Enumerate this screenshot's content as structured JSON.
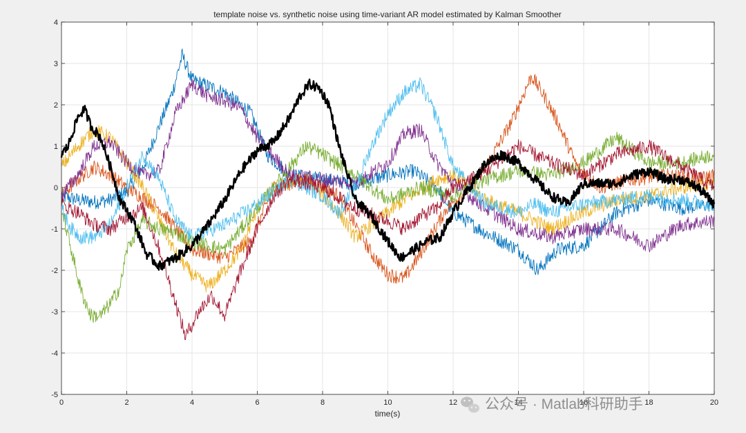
{
  "chart_data": {
    "type": "line",
    "title": "template noise vs. synthetic noise using time-variant AR model estimated by Kalman Smoother",
    "xlabel": "time(s)",
    "ylabel": "",
    "xlim": [
      0,
      20
    ],
    "ylim": [
      -5,
      4
    ],
    "xticks": [
      "0",
      "2",
      "4",
      "6",
      "8",
      "10",
      "12",
      "14",
      "16",
      "18",
      "20"
    ],
    "yticks": [
      "-5",
      "-4",
      "-3",
      "-2",
      "-1",
      "0",
      "1",
      "2",
      "3",
      "4"
    ],
    "grid": true,
    "legend": "none",
    "noise_band": 0.22,
    "series": [
      {
        "color": "#0072bd",
        "width": 0.9,
        "x": [
          0,
          0.5,
          1.0,
          1.5,
          2.0,
          2.5,
          3.0,
          3.4,
          3.7,
          4.0,
          5.0,
          5.8,
          6.3,
          7.0,
          8.0,
          9.0,
          10.0,
          10.8,
          11.5,
          12.0,
          13.0,
          14.0,
          14.6,
          15.2,
          16.0,
          17.0,
          18.0,
          19.0,
          20.0
        ],
        "y": [
          -0.2,
          -0.3,
          -0.35,
          -0.3,
          -0.1,
          0.5,
          1.5,
          2.3,
          3.2,
          2.6,
          2.3,
          1.8,
          0.8,
          0.3,
          0.2,
          0.1,
          0.3,
          0.4,
          0.0,
          -0.6,
          -1.1,
          -1.5,
          -2.0,
          -1.5,
          -1.4,
          -0.6,
          -0.3,
          -0.5,
          -0.4
        ]
      },
      {
        "color": "#d95319",
        "width": 0.9,
        "x": [
          0,
          0.5,
          1.0,
          1.5,
          2.0,
          3.0,
          4.0,
          5.0,
          5.8,
          6.5,
          7.5,
          8.5,
          9.5,
          10.0,
          10.5,
          11.0,
          11.8,
          12.5,
          13.0,
          13.8,
          14.4,
          14.8,
          15.2,
          15.8,
          16.5,
          17.5,
          18.5,
          19.5,
          20.0
        ],
        "y": [
          -0.2,
          0.2,
          0.5,
          0.3,
          0.0,
          -0.5,
          -1.5,
          -1.7,
          -1.3,
          0.0,
          0.2,
          -0.2,
          -1.6,
          -2.1,
          -2.2,
          -1.6,
          -0.5,
          0.0,
          0.5,
          1.6,
          2.7,
          2.2,
          1.6,
          0.5,
          0.0,
          0.2,
          0.3,
          0.2,
          0.3
        ]
      },
      {
        "color": "#edb120",
        "width": 0.9,
        "x": [
          0,
          0.5,
          1.0,
          1.5,
          2.0,
          2.5,
          3.0,
          3.5,
          4.0,
          4.5,
          5.0,
          5.5,
          6.0,
          6.5,
          7.5,
          8.5,
          9.0,
          9.5,
          10.5,
          11.5,
          12.0,
          13.0,
          14.0,
          15.0,
          16.0,
          17.0,
          18.0,
          19.0,
          20.0
        ],
        "y": [
          0.5,
          1.0,
          1.4,
          1.2,
          0.6,
          0.0,
          -0.8,
          -1.6,
          -2.1,
          -2.4,
          -2.0,
          -1.5,
          -0.5,
          0.0,
          0.2,
          -0.6,
          -1.2,
          -0.9,
          -0.3,
          0.2,
          0.3,
          -0.3,
          -0.6,
          -1.0,
          -0.6,
          -0.3,
          -0.2,
          0.0,
          0.1
        ]
      },
      {
        "color": "#7e2f8e",
        "width": 0.9,
        "x": [
          0,
          0.5,
          1.0,
          1.5,
          2.0,
          2.5,
          3.0,
          3.5,
          4.0,
          4.5,
          5.0,
          5.5,
          6.0,
          7.0,
          8.0,
          9.0,
          10.0,
          10.5,
          11.0,
          11.5,
          12.0,
          13.0,
          14.0,
          15.0,
          16.0,
          17.0,
          18.0,
          19.0,
          20.0
        ],
        "y": [
          -0.2,
          0.3,
          1.0,
          1.1,
          0.6,
          0.3,
          0.4,
          1.8,
          2.5,
          2.2,
          2.1,
          1.9,
          1.2,
          0.3,
          0.2,
          0.1,
          0.6,
          1.3,
          1.4,
          0.6,
          0.1,
          -0.5,
          -1.0,
          -1.2,
          -1.0,
          -1.0,
          -1.4,
          -0.9,
          -0.8
        ]
      },
      {
        "color": "#77ac30",
        "width": 0.9,
        "x": [
          0,
          0.3,
          0.6,
          0.9,
          1.2,
          1.5,
          1.8,
          2.0,
          2.5,
          3.0,
          3.5,
          4.0,
          5.0,
          6.0,
          7.0,
          7.5,
          8.0,
          9.0,
          10.0,
          11.0,
          12.0,
          13.0,
          13.5,
          14.0,
          15.0,
          16.0,
          17.0,
          18.0,
          19.0,
          20.0
        ],
        "y": [
          -0.5,
          -1.5,
          -2.5,
          -3.1,
          -3.1,
          -2.8,
          -2.4,
          -1.5,
          -0.8,
          -1.0,
          -1.1,
          -1.3,
          -1.5,
          -0.5,
          0.5,
          1.0,
          0.8,
          0.3,
          -0.3,
          0.0,
          -0.2,
          0.2,
          0.3,
          0.4,
          0.3,
          0.6,
          1.2,
          0.6,
          0.6,
          0.8
        ]
      },
      {
        "color": "#4dbeee",
        "width": 0.9,
        "x": [
          0,
          0.3,
          0.6,
          1.0,
          1.5,
          2.0,
          2.5,
          3.0,
          3.5,
          4.0,
          5.0,
          6.0,
          7.0,
          8.0,
          8.5,
          9.0,
          9.5,
          10.0,
          10.5,
          11.0,
          11.5,
          12.0,
          13.0,
          14.0,
          14.5,
          15.0,
          16.0,
          17.0,
          18.0,
          19.0,
          20.0
        ],
        "y": [
          -0.5,
          -1.0,
          -1.2,
          -1.2,
          -0.9,
          0.0,
          0.8,
          0.2,
          -0.8,
          -1.2,
          -0.9,
          -0.4,
          0.2,
          -0.2,
          -0.6,
          0.0,
          1.0,
          1.8,
          2.3,
          2.5,
          1.7,
          0.5,
          -0.4,
          -0.6,
          -0.4,
          -0.6,
          -0.4,
          -0.3,
          -0.2,
          -0.3,
          -0.4
        ]
      },
      {
        "color": "#a2142f",
        "width": 0.9,
        "x": [
          0,
          0.5,
          1.0,
          1.5,
          2.0,
          2.5,
          3.0,
          3.5,
          3.8,
          4.2,
          4.6,
          5.0,
          5.5,
          6.0,
          6.5,
          7.0,
          8.0,
          9.0,
          10.0,
          10.5,
          11.0,
          11.5,
          12.0,
          13.0,
          13.5,
          14.0,
          15.0,
          16.0,
          17.0,
          18.0,
          19.0,
          20.0
        ],
        "y": [
          -0.4,
          -0.6,
          -0.9,
          -1.0,
          -0.7,
          -0.5,
          -1.5,
          -2.8,
          -3.6,
          -3.0,
          -2.6,
          -3.1,
          -2.0,
          -1.0,
          -0.2,
          0.2,
          0.0,
          -0.5,
          -0.8,
          -1.0,
          -0.7,
          -0.5,
          0.0,
          0.4,
          0.7,
          1.0,
          0.6,
          0.3,
          0.8,
          1.0,
          0.5,
          0.0
        ]
      },
      {
        "color": "#000000",
        "width": 2.4,
        "x": [
          0,
          0.2,
          0.5,
          0.7,
          0.9,
          1.2,
          1.5,
          1.8,
          2.2,
          2.6,
          3.0,
          3.5,
          4.0,
          4.5,
          5.0,
          5.5,
          6.0,
          6.5,
          7.0,
          7.3,
          7.6,
          7.9,
          8.2,
          8.5,
          9.0,
          9.5,
          10.0,
          10.4,
          10.8,
          11.2,
          11.6,
          12.0,
          12.5,
          13.0,
          13.5,
          14.0,
          14.5,
          15.0,
          15.5,
          16.0,
          16.5,
          17.0,
          17.5,
          18.0,
          18.5,
          19.0,
          19.5,
          20.0
        ],
        "y": [
          0.8,
          1.0,
          1.7,
          1.9,
          1.5,
          1.2,
          0.5,
          -0.3,
          -0.8,
          -1.6,
          -1.9,
          -1.7,
          -1.4,
          -0.9,
          -0.3,
          0.4,
          0.9,
          1.1,
          1.7,
          2.2,
          2.5,
          2.4,
          2.0,
          1.0,
          -0.3,
          -0.7,
          -1.3,
          -1.7,
          -1.5,
          -1.3,
          -1.2,
          -0.6,
          0.0,
          0.6,
          0.8,
          0.6,
          0.2,
          -0.2,
          -0.4,
          0.1,
          0.1,
          0.1,
          0.3,
          0.4,
          0.2,
          0.2,
          0.0,
          -0.4
        ]
      }
    ]
  },
  "watermark": {
    "text": "公众号 · Matlab科研助手",
    "icon": "wechat-icon"
  }
}
